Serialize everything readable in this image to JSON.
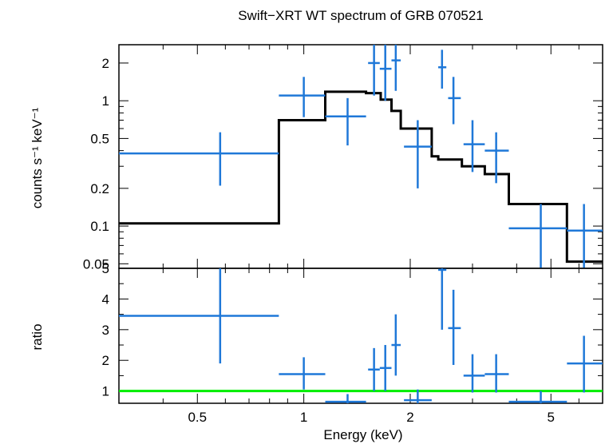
{
  "chart_data": {
    "title": "Swift−XRT WT spectrum of GRB 070521",
    "xlabel": "Energy (keV)",
    "xscale": "log",
    "xlim": [
      0.3,
      7.0
    ],
    "xticks": [
      {
        "value": 0.5,
        "label": "0.5"
      },
      {
        "value": 1,
        "label": "1"
      },
      {
        "value": 2,
        "label": "2"
      },
      {
        "value": 5,
        "label": "5"
      }
    ],
    "panels": [
      {
        "id": "spectrum",
        "type": "scatter",
        "yscale": "log",
        "ylabel": "counts s⁻¹ keV⁻¹",
        "ylim": [
          0.046,
          2.8
        ],
        "yticks": [
          {
            "value": 0.05,
            "label": "0.05"
          },
          {
            "value": 0.1,
            "label": "0.1"
          },
          {
            "value": 0.2,
            "label": "0.2"
          },
          {
            "value": 0.5,
            "label": "0.5"
          },
          {
            "value": 1,
            "label": "1"
          },
          {
            "value": 2,
            "label": "2"
          }
        ],
        "data": [
          {
            "x": 0.58,
            "xlo": 0.3,
            "xhi": 0.85,
            "y": 0.38,
            "ylo": 0.21,
            "yhi": 0.56
          },
          {
            "x": 1.0,
            "xlo": 0.85,
            "xhi": 1.15,
            "y": 1.1,
            "ylo": 0.74,
            "yhi": 1.55
          },
          {
            "x": 1.33,
            "xlo": 1.15,
            "xhi": 1.5,
            "y": 0.75,
            "ylo": 0.44,
            "yhi": 1.05
          },
          {
            "x": 1.58,
            "xlo": 1.52,
            "xhi": 1.64,
            "y": 2.0,
            "ylo": 1.1,
            "yhi": 2.8
          },
          {
            "x": 1.7,
            "xlo": 1.64,
            "xhi": 1.77,
            "y": 1.8,
            "ylo": 1.0,
            "yhi": 2.8
          },
          {
            "x": 1.82,
            "xlo": 1.77,
            "xhi": 1.88,
            "y": 2.1,
            "ylo": 1.2,
            "yhi": 2.8
          },
          {
            "x": 2.1,
            "xlo": 1.92,
            "xhi": 2.3,
            "y": 0.43,
            "ylo": 0.2,
            "yhi": 0.7
          },
          {
            "x": 2.46,
            "xlo": 2.4,
            "xhi": 2.53,
            "y": 1.85,
            "ylo": 1.25,
            "yhi": 2.55
          },
          {
            "x": 2.65,
            "xlo": 2.56,
            "xhi": 2.78,
            "y": 1.05,
            "ylo": 0.65,
            "yhi": 1.55
          },
          {
            "x": 3.0,
            "xlo": 2.83,
            "xhi": 3.25,
            "y": 0.45,
            "ylo": 0.27,
            "yhi": 0.7
          },
          {
            "x": 3.5,
            "xlo": 3.25,
            "xhi": 3.8,
            "y": 0.4,
            "ylo": 0.22,
            "yhi": 0.56
          },
          {
            "x": 4.68,
            "xlo": 3.8,
            "xhi": 5.55,
            "y": 0.096,
            "ylo": 0.046,
            "yhi": 0.15
          },
          {
            "x": 6.2,
            "xlo": 5.55,
            "xhi": 7.0,
            "y": 0.092,
            "ylo": 0.046,
            "yhi": 0.15
          }
        ],
        "model_step": {
          "edges": [
            0.3,
            0.85,
            1.15,
            1.5,
            1.65,
            1.77,
            1.88,
            2.3,
            2.4,
            2.8,
            3.25,
            3.8,
            5.55,
            7.0
          ],
          "values": [
            0.105,
            0.7,
            1.18,
            1.15,
            1.02,
            0.83,
            0.6,
            0.36,
            0.34,
            0.3,
            0.26,
            0.15,
            0.052
          ]
        }
      },
      {
        "id": "ratio",
        "type": "scatter",
        "yscale": "linear",
        "ylabel": "ratio",
        "ylim": [
          0.6,
          5.0
        ],
        "yticks": [
          {
            "value": 1,
            "label": "1"
          },
          {
            "value": 2,
            "label": "2"
          },
          {
            "value": 3,
            "label": "3"
          },
          {
            "value": 4,
            "label": "4"
          },
          {
            "value": 5,
            "label": "5"
          }
        ],
        "data": [
          {
            "x": 0.58,
            "xlo": 0.3,
            "xhi": 0.85,
            "y": 3.45,
            "ylo": 1.9,
            "yhi": 5.0
          },
          {
            "x": 1.0,
            "xlo": 0.85,
            "xhi": 1.15,
            "y": 1.55,
            "ylo": 1.05,
            "yhi": 2.1
          },
          {
            "x": 1.33,
            "xlo": 1.15,
            "xhi": 1.5,
            "y": 0.65,
            "ylo": 0.6,
            "yhi": 0.9
          },
          {
            "x": 1.58,
            "xlo": 1.52,
            "xhi": 1.64,
            "y": 1.7,
            "ylo": 1.0,
            "yhi": 2.4
          },
          {
            "x": 1.7,
            "xlo": 1.64,
            "xhi": 1.77,
            "y": 1.75,
            "ylo": 1.0,
            "yhi": 2.5
          },
          {
            "x": 1.82,
            "xlo": 1.77,
            "xhi": 1.88,
            "y": 2.5,
            "ylo": 1.5,
            "yhi": 3.5
          },
          {
            "x": 2.1,
            "xlo": 1.92,
            "xhi": 2.3,
            "y": 0.7,
            "ylo": 0.6,
            "yhi": 1.05
          },
          {
            "x": 2.46,
            "xlo": 2.4,
            "xhi": 2.53,
            "y": 4.95,
            "ylo": 3.0,
            "yhi": 5.0
          },
          {
            "x": 2.65,
            "xlo": 2.56,
            "xhi": 2.78,
            "y": 3.05,
            "ylo": 1.85,
            "yhi": 4.3
          },
          {
            "x": 3.0,
            "xlo": 2.83,
            "xhi": 3.25,
            "y": 1.5,
            "ylo": 0.95,
            "yhi": 2.2
          },
          {
            "x": 3.5,
            "xlo": 3.25,
            "xhi": 3.8,
            "y": 1.55,
            "ylo": 0.95,
            "yhi": 2.2
          },
          {
            "x": 4.68,
            "xlo": 3.8,
            "xhi": 5.55,
            "y": 0.65,
            "ylo": 0.6,
            "yhi": 1.0
          },
          {
            "x": 6.2,
            "xlo": 5.55,
            "xhi": 7.0,
            "y": 1.9,
            "ylo": 0.95,
            "yhi": 2.8
          }
        ],
        "reference_line": {
          "y": 1.0
        }
      }
    ],
    "colors": {
      "data": "#1f78d8",
      "model": "#000000",
      "reference": "#00ee00",
      "frame": "#000000"
    },
    "grid": false,
    "legend": "none"
  }
}
